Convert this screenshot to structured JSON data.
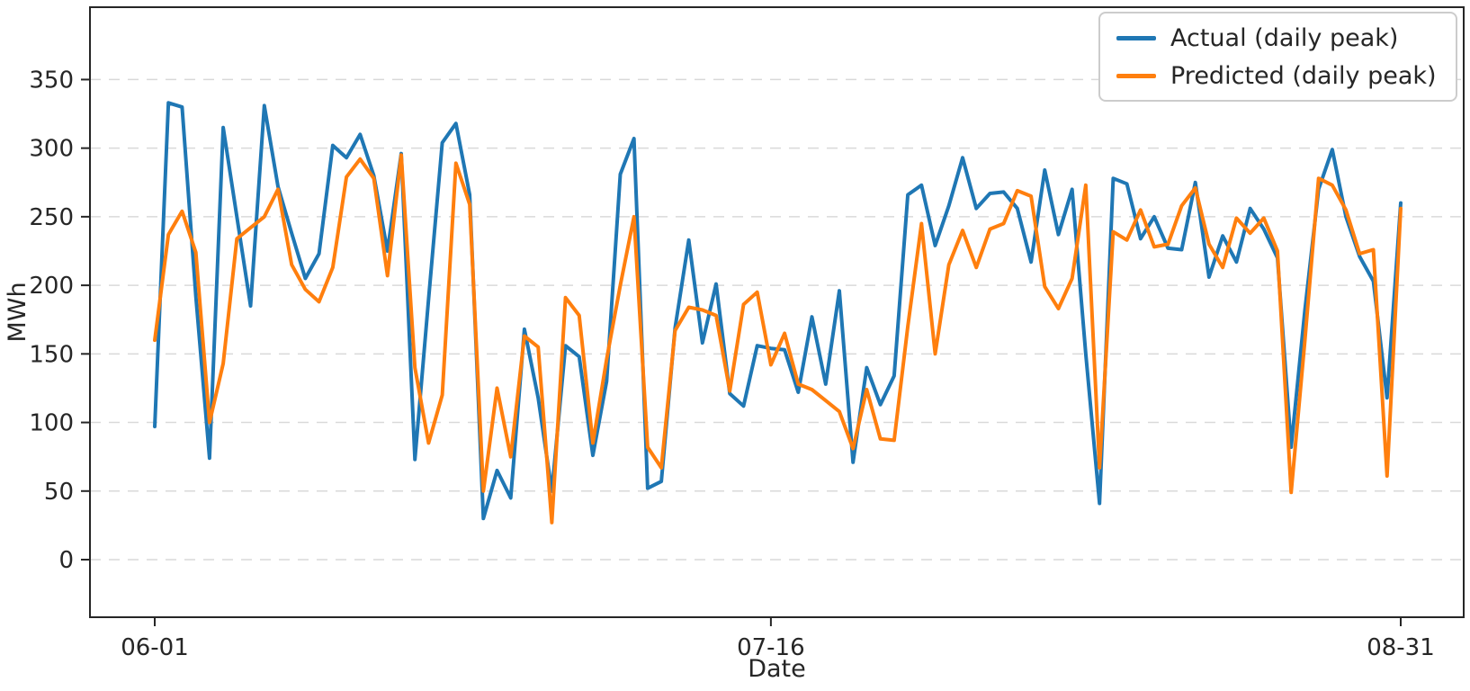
{
  "figure": {
    "xlabel": "Date",
    "ylabel": "MWh",
    "background": "#ffffff",
    "spine_color": "#262626",
    "grid_color": "#d9d9d9"
  },
  "legend": {
    "position": "upper right",
    "entries": [
      {
        "label": "Actual (daily peak)",
        "color": "#1f77b4"
      },
      {
        "label": "Predicted (daily peak)",
        "color": "#ff7f0e"
      }
    ]
  },
  "chart_data": {
    "type": "line",
    "title": "",
    "xlabel": "Date",
    "ylabel": "MWh",
    "grid": "horizontal-dashed",
    "legend_position": "upper right",
    "yticks": [
      0,
      50,
      100,
      150,
      200,
      250,
      300,
      350
    ],
    "xticks": [
      {
        "label": "06-01",
        "index": 0
      },
      {
        "label": "07-16",
        "index": 45
      },
      {
        "label": "08-31",
        "index": 91
      }
    ],
    "x": [
      "06-01",
      "06-02",
      "06-03",
      "06-04",
      "06-05",
      "06-06",
      "06-07",
      "06-08",
      "06-09",
      "06-10",
      "06-11",
      "06-12",
      "06-13",
      "06-14",
      "06-15",
      "06-16",
      "06-17",
      "06-18",
      "06-19",
      "06-20",
      "06-21",
      "06-22",
      "06-23",
      "06-24",
      "06-25",
      "06-26",
      "06-27",
      "06-28",
      "06-29",
      "06-30",
      "07-01",
      "07-02",
      "07-03",
      "07-04",
      "07-05",
      "07-06",
      "07-07",
      "07-08",
      "07-09",
      "07-10",
      "07-11",
      "07-12",
      "07-13",
      "07-14",
      "07-15",
      "07-16",
      "07-17",
      "07-18",
      "07-19",
      "07-20",
      "07-21",
      "07-22",
      "07-23",
      "07-24",
      "07-25",
      "07-26",
      "07-27",
      "07-28",
      "07-29",
      "07-30",
      "07-31",
      "08-01",
      "08-02",
      "08-03",
      "08-04",
      "08-05",
      "08-06",
      "08-07",
      "08-08",
      "08-09",
      "08-10",
      "08-11",
      "08-12",
      "08-13",
      "08-14",
      "08-15",
      "08-16",
      "08-17",
      "08-18",
      "08-19",
      "08-20",
      "08-21",
      "08-22",
      "08-23",
      "08-24",
      "08-25",
      "08-26",
      "08-27",
      "08-28",
      "08-29",
      "08-30",
      "08-31"
    ],
    "series": [
      {
        "name": "Actual (daily peak)",
        "color": "#1f77b4",
        "values": [
          97,
          333,
          330,
          192,
          74,
          315,
          250,
          185,
          331,
          272,
          238,
          205,
          223,
          302,
          293,
          310,
          280,
          225,
          296,
          73,
          190,
          304,
          318,
          266,
          30,
          65,
          45,
          168,
          118,
          50,
          156,
          148,
          76,
          130,
          281,
          307,
          52,
          57,
          169,
          233,
          158,
          201,
          121,
          112,
          156,
          154,
          153,
          122,
          177,
          128,
          196,
          71,
          140,
          113,
          134,
          266,
          273,
          229,
          258,
          293,
          256,
          267,
          268,
          256,
          217,
          284,
          237,
          270,
          150,
          41,
          278,
          274,
          234,
          250,
          227,
          226,
          275,
          206,
          236,
          217,
          256,
          241,
          220,
          82,
          182,
          270,
          299,
          250,
          221,
          203,
          118,
          260
        ]
      },
      {
        "name": "Predicted (daily peak)",
        "color": "#ff7f0e",
        "values": [
          160,
          237,
          254,
          224,
          100,
          143,
          234,
          242,
          250,
          270,
          215,
          197,
          188,
          213,
          279,
          292,
          278,
          207,
          295,
          140,
          85,
          120,
          289,
          259,
          50,
          125,
          75,
          163,
          155,
          27,
          191,
          178,
          85,
          146,
          200,
          250,
          82,
          67,
          167,
          184,
          182,
          178,
          123,
          186,
          195,
          142,
          165,
          128,
          124,
          116,
          108,
          81,
          124,
          88,
          87,
          170,
          245,
          150,
          215,
          240,
          213,
          241,
          245,
          269,
          265,
          199,
          183,
          205,
          273,
          67,
          239,
          233,
          255,
          228,
          230,
          258,
          271,
          230,
          213,
          249,
          238,
          249,
          225,
          49,
          160,
          278,
          273,
          255,
          223,
          226,
          61,
          256
        ]
      }
    ]
  }
}
